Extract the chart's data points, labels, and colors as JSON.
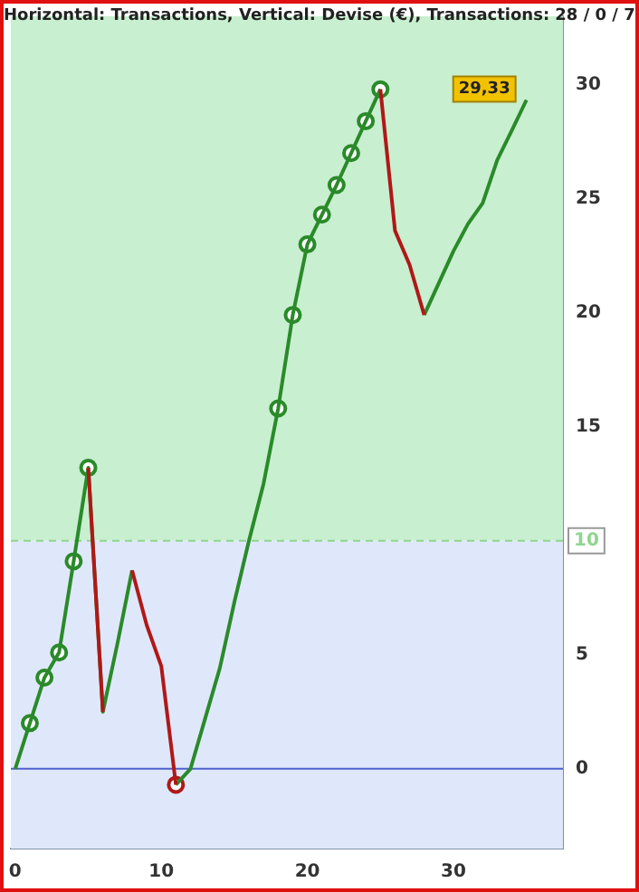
{
  "chart_data": {
    "type": "line",
    "title": "Horizontal: Transactions, Vertical: Devise (€), Transactions: 28 / 0 / 7",
    "xlim": [
      -0.3,
      37.5
    ],
    "xticks": [
      0,
      10,
      20,
      30
    ],
    "ylim": [
      -3.5,
      33
    ],
    "yticks": [
      0,
      5,
      10,
      15,
      20,
      25,
      30
    ],
    "grid": false,
    "legend": false,
    "x": [
      0,
      1,
      2,
      3,
      4,
      5,
      6,
      7,
      8,
      9,
      10,
      11,
      12,
      13,
      14,
      15,
      16,
      17,
      18,
      19,
      20,
      21,
      22,
      23,
      24,
      25,
      26,
      27,
      28,
      29,
      30,
      31,
      32,
      33,
      34,
      35
    ],
    "bands": [
      {
        "axis": "y",
        "from": 10,
        "to": 33,
        "color": "#c8efcf"
      },
      {
        "axis": "y",
        "from": -3.5,
        "to": 10,
        "color": "#dfe8fb"
      }
    ],
    "ref_lines": [
      {
        "axis": "y",
        "value": 10,
        "label": "10",
        "color": "#8fd58f",
        "line_style": "dashed"
      },
      {
        "axis": "y",
        "value": 0,
        "color": "#5060d0",
        "line_style": "solid"
      }
    ],
    "series": [
      {
        "type": "line",
        "marker": "none",
        "color": "#b01818",
        "values": [
          null,
          null,
          null,
          null,
          null,
          13.2,
          2.5,
          null,
          8.7,
          6.3,
          4.5,
          -0.7,
          null,
          null,
          null,
          null,
          null,
          null,
          null,
          null,
          null,
          null,
          null,
          null,
          null,
          29.8,
          23.6,
          22.1,
          19.9,
          null,
          null,
          null,
          null,
          null,
          null,
          null
        ]
      },
      {
        "type": "line",
        "marker": "none",
        "color": "#2a8a2a",
        "values": [
          0,
          2,
          4,
          5.1,
          9.1,
          13.2,
          2.5,
          5.5,
          8.7,
          null,
          null,
          -0.7,
          0,
          2.2,
          4.4,
          7.3,
          10,
          12.5,
          15.8,
          19.9,
          23,
          24.3,
          25.6,
          27,
          28.4,
          29.8,
          null,
          null,
          19.9,
          21.3,
          22.7,
          23.9,
          24.8,
          26.7,
          28,
          29.33
        ],
        "value_labels": [
          null,
          null,
          null,
          null,
          null,
          null,
          null,
          null,
          null,
          null,
          null,
          null,
          null,
          null,
          null,
          null,
          null,
          null,
          null,
          null,
          null,
          null,
          null,
          null,
          null,
          null,
          null,
          null,
          null,
          null,
          null,
          null,
          null,
          null,
          null,
          "29,33"
        ]
      },
      {
        "type": "scatter",
        "marker": "circle",
        "x": [
          1,
          2,
          3,
          4,
          5,
          11,
          18,
          19,
          20,
          21,
          22,
          23,
          24,
          25
        ],
        "values": [
          2,
          4,
          5.1,
          9.1,
          13.2,
          -0.7,
          15.8,
          19.9,
          23,
          24.3,
          25.6,
          27,
          28.4,
          29.8
        ],
        "colors": [
          "#2a8a2a",
          "#2a8a2a",
          "#2a8a2a",
          "#2a8a2a",
          "#2a8a2a",
          "#b01818",
          "#2a8a2a",
          "#2a8a2a",
          "#2a8a2a",
          "#2a8a2a",
          "#2a8a2a",
          "#2a8a2a",
          "#2a8a2a",
          "#2a8a2a"
        ]
      }
    ]
  }
}
